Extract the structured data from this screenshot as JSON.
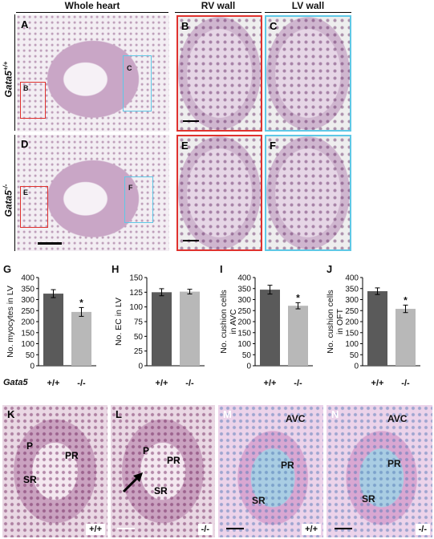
{
  "headers": {
    "whole_heart": "Whole heart",
    "rv_wall": "RV wall",
    "lv_wall": "LV wall"
  },
  "row_labels": {
    "wt": "Gata5+/+",
    "wt_base": "Gata5",
    "wt_sup": "+/+",
    "ko_base": "Gata5",
    "ko_sup": "-/-"
  },
  "panels": {
    "A": "A",
    "B": "B",
    "C": "C",
    "D": "D",
    "E": "E",
    "F": "F",
    "K": "K",
    "L": "L",
    "M": "M",
    "N": "N"
  },
  "boxes": {
    "A_B": "B",
    "A_C": "C",
    "D_E": "E",
    "D_F": "F"
  },
  "colors": {
    "red_box": "#e0322e",
    "cyan_box": "#5ec8e6",
    "dark_bar": "#5a5a5a",
    "light_bar": "#b8b8b8"
  },
  "bottom": {
    "K": {
      "labels": [
        "P",
        "PR",
        "SR"
      ],
      "genotype": "+/+"
    },
    "L": {
      "labels": [
        "P",
        "PR",
        "SR"
      ],
      "genotype": "-/-"
    },
    "M": {
      "labels": [
        "AVC",
        "PR",
        "SR"
      ],
      "genotype": "+/+"
    },
    "N": {
      "labels": [
        "AVC",
        "PR",
        "SR"
      ],
      "genotype": "-/-"
    }
  },
  "genotype_row_label": "Gata5",
  "chart_data": [
    {
      "panel": "G",
      "type": "bar",
      "categories": [
        "+/+",
        "-/-"
      ],
      "values": [
        327,
        244
      ],
      "errors": [
        18,
        20
      ],
      "ylabel": "No. myocytes in LV",
      "ylim": [
        0,
        400
      ],
      "yticks": [
        0,
        50,
        100,
        150,
        200,
        250,
        300,
        350,
        400
      ],
      "significance": [
        "",
        "*"
      ]
    },
    {
      "panel": "H",
      "type": "bar",
      "categories": [
        "+/+",
        "-/-"
      ],
      "values": [
        125,
        126
      ],
      "errors": [
        6,
        4
      ],
      "ylabel": "No. EC in LV",
      "ylim": [
        0,
        150
      ],
      "yticks": [
        0,
        25,
        50,
        75,
        100,
        125,
        150
      ],
      "significance": [
        "",
        ""
      ]
    },
    {
      "panel": "I",
      "type": "bar",
      "categories": [
        "+/+",
        "-/-"
      ],
      "values": [
        345,
        272
      ],
      "errors": [
        20,
        14
      ],
      "ylabel": "No. cushion cells in AVC",
      "ylim": [
        0,
        400
      ],
      "yticks": [
        0,
        50,
        100,
        150,
        200,
        250,
        300,
        350,
        400
      ],
      "significance": [
        "",
        "*"
      ]
    },
    {
      "panel": "J",
      "type": "bar",
      "categories": [
        "+/+",
        "-/-"
      ],
      "values": [
        338,
        258
      ],
      "errors": [
        15,
        17
      ],
      "ylabel": "No. cushion cells in OFT",
      "ylim": [
        0,
        400
      ],
      "yticks": [
        0,
        50,
        100,
        150,
        200,
        250,
        300,
        350,
        400
      ],
      "significance": [
        "",
        "*"
      ]
    }
  ]
}
